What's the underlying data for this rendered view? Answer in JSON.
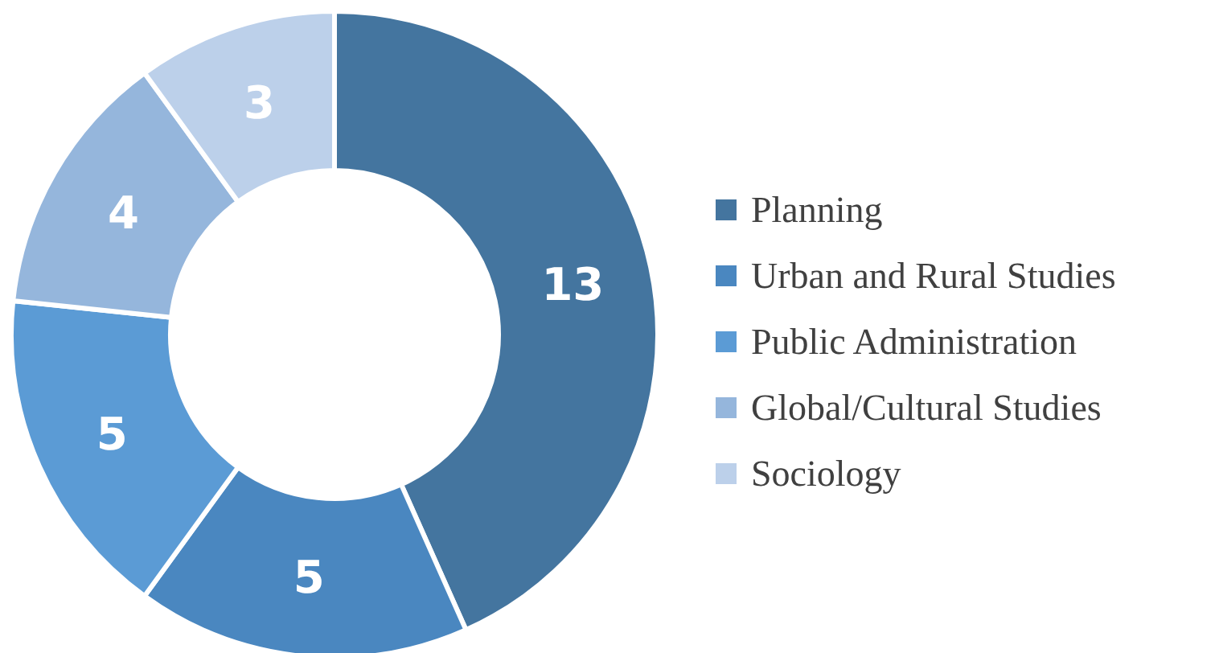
{
  "chart_data": {
    "type": "donut",
    "categories": [
      "Planning",
      "Urban and Rural Studies",
      "Public Administration",
      "Global/Cultural Studies",
      "Sociology"
    ],
    "values": [
      13,
      5,
      5,
      4,
      3
    ],
    "colors": [
      "#44759f",
      "#4a87c0",
      "#5b9bd5",
      "#95b6dc",
      "#bcd0ea"
    ],
    "data_labels": true,
    "legend": "right"
  }
}
